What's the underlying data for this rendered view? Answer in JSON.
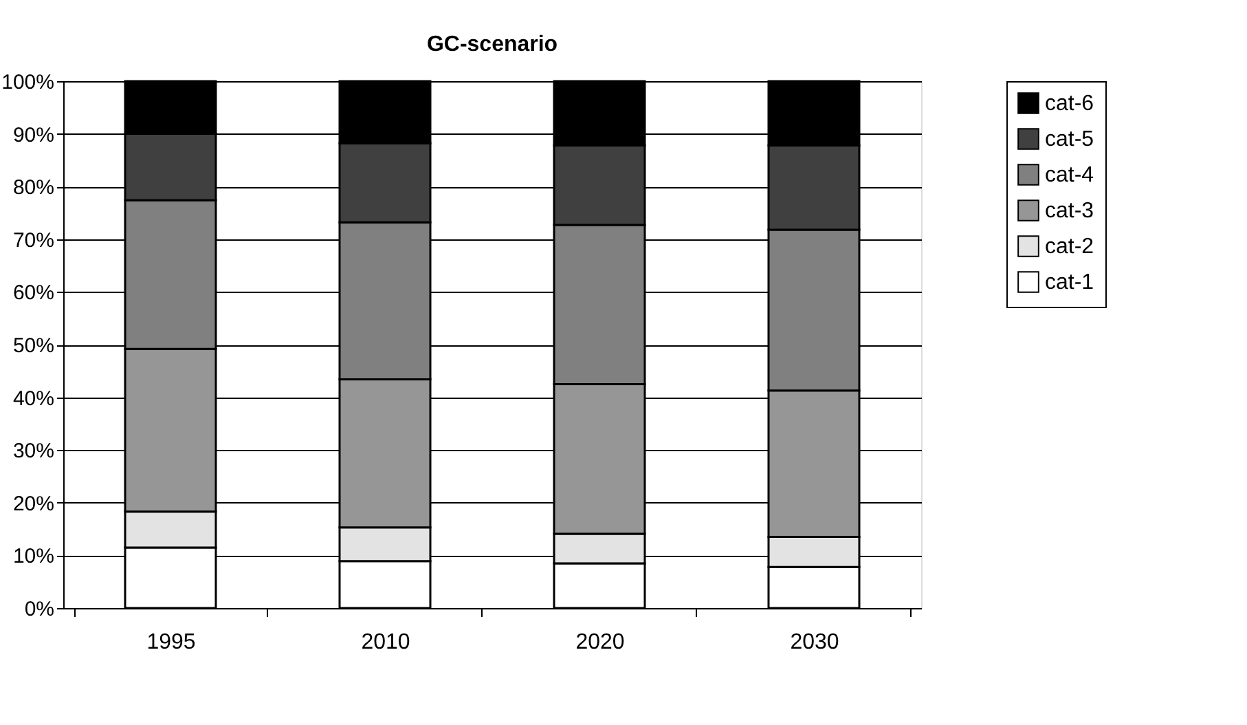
{
  "chart_data": {
    "type": "bar",
    "title": "GC-scenario",
    "categories": [
      "1995",
      "2010",
      "2020",
      "2030"
    ],
    "stacked": true,
    "series": [
      {
        "name": "cat-1",
        "color": "#ffffff",
        "values": [
          11.5,
          8.9,
          8.5,
          7.8
        ]
      },
      {
        "name": "cat-2",
        "color": "#e3e3e3",
        "values": [
          6.8,
          6.4,
          5.6,
          5.7
        ]
      },
      {
        "name": "cat-3",
        "color": "#969696",
        "values": [
          30.9,
          28.1,
          28.4,
          27.8
        ]
      },
      {
        "name": "cat-4",
        "color": "#808080",
        "values": [
          28.2,
          29.8,
          30.2,
          30.5
        ]
      },
      {
        "name": "cat-5",
        "color": "#404040",
        "values": [
          12.6,
          15.0,
          15.1,
          16.0
        ]
      },
      {
        "name": "cat-6",
        "color": "#000000",
        "values": [
          10.0,
          11.8,
          12.2,
          12.2
        ]
      }
    ],
    "ylim": [
      0,
      100
    ],
    "yticks": [
      {
        "value": 0,
        "label": "0%"
      },
      {
        "value": 10,
        "label": "10%"
      },
      {
        "value": 20,
        "label": "20%"
      },
      {
        "value": 30,
        "label": "30%"
      },
      {
        "value": 40,
        "label": "40%"
      },
      {
        "value": 50,
        "label": "50%"
      },
      {
        "value": 60,
        "label": "60%"
      },
      {
        "value": 70,
        "label": "70%"
      },
      {
        "value": 80,
        "label": "80%"
      },
      {
        "value": 90,
        "label": "90%"
      },
      {
        "value": 100,
        "label": "100%"
      }
    ],
    "grid": "y",
    "legend": "top right"
  }
}
